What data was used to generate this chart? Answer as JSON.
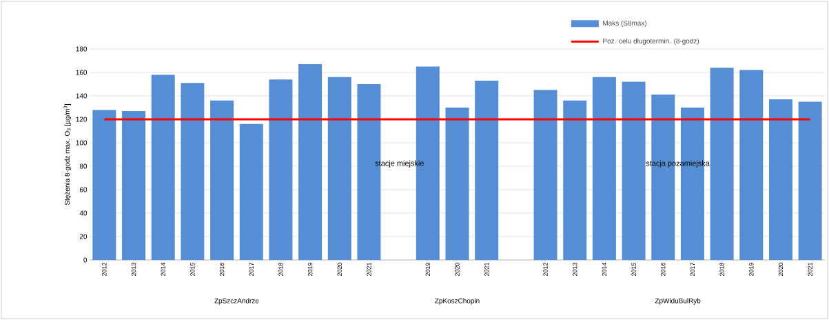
{
  "chart_data": {
    "type": "bar",
    "ylabel": "Stężenia 8-godz max. O$_{3}$ [µg/m$^{3}$]",
    "categories": [
      "2012",
      "2013",
      "2014",
      "2015",
      "2016",
      "2017",
      "2018",
      "2019",
      "2020",
      "2021",
      null,
      "2019",
      "2020",
      "2021",
      null,
      "2012",
      "2013",
      "2014",
      "2015",
      "2016",
      "2017",
      "2018",
      "2019",
      "2020",
      "2021"
    ],
    "series": [
      {
        "name": "Maks (S8max)",
        "color": "#558ed5",
        "values": [
          128,
          127,
          158,
          151,
          136,
          116,
          154,
          167,
          156,
          150,
          null,
          165,
          130,
          153,
          null,
          145,
          136,
          156,
          152,
          141,
          130,
          164,
          162,
          137,
          135
        ]
      }
    ],
    "ref_lines": [
      {
        "axis": "y",
        "value": 120,
        "label": "Poz. celu długotermin. (8-godz)",
        "color": "#ff0000"
      }
    ],
    "annotations": [
      "ZpSzczAndrze",
      "ZpKoszChopin",
      "ZpWiduBulRyb",
      "stacje miejskie",
      "stacja pozamiejska"
    ],
    "ylim": [
      0,
      180
    ],
    "yticks": [
      0,
      20,
      40,
      60,
      80,
      100,
      120,
      140,
      160,
      180
    ],
    "grid": "y",
    "legend": "top right"
  }
}
